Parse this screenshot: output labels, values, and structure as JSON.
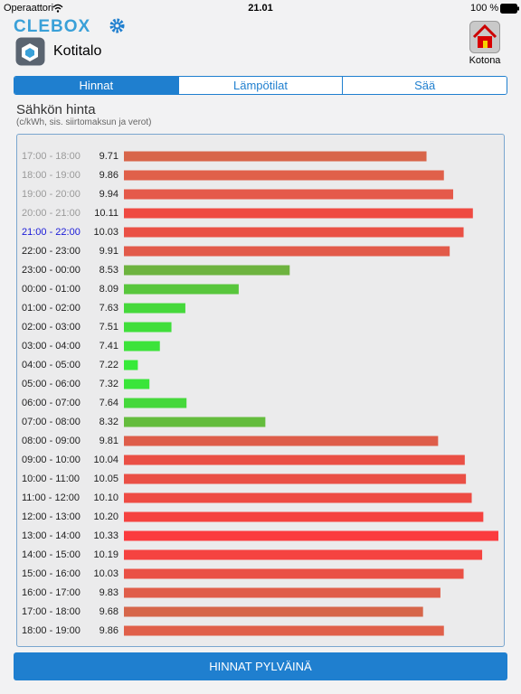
{
  "status_bar": {
    "carrier": "Operaattori",
    "time": "21.01",
    "battery": "100 %"
  },
  "header": {
    "logo": "CLEBOX",
    "location": "Kotitalo",
    "mode": "Kotona"
  },
  "tabs": [
    "Hinnat",
    "Lämpötilat",
    "Sää"
  ],
  "section": {
    "title": "Sähkön hinta",
    "subtitle": "(c/kWh, sis. siirtomaksun ja verot)"
  },
  "chart_data": {
    "type": "bar",
    "orientation": "horizontal",
    "categories": [
      "17:00 - 18:00",
      "18:00 - 19:00",
      "19:00 - 20:00",
      "20:00 - 21:00",
      "21:00 - 22:00",
      "22:00 - 23:00",
      "23:00 - 00:00",
      "00:00 - 01:00",
      "01:00 - 02:00",
      "02:00 - 03:00",
      "03:00 - 04:00",
      "04:00 - 05:00",
      "05:00 - 06:00",
      "06:00 - 07:00",
      "07:00 - 08:00",
      "08:00 - 09:00",
      "09:00 - 10:00",
      "10:00 - 11:00",
      "11:00 - 12:00",
      "12:00 - 13:00",
      "13:00 - 14:00",
      "14:00 - 15:00",
      "15:00 - 16:00",
      "16:00 - 17:00",
      "17:00 - 18:00",
      "18:00 - 19:00"
    ],
    "values": [
      9.71,
      9.86,
      9.94,
      10.11,
      10.03,
      9.91,
      8.53,
      8.09,
      7.63,
      7.51,
      7.41,
      7.22,
      7.32,
      7.64,
      8.32,
      9.81,
      10.04,
      10.05,
      10.1,
      10.2,
      10.33,
      10.19,
      10.03,
      9.83,
      9.68,
      9.86
    ],
    "value_labels": [
      "9.71",
      "9.86",
      "9.94",
      "10.11",
      "10.03",
      "9.91",
      "8.53",
      "8.09",
      "7.63",
      "7.51",
      "7.41",
      "7.22",
      "7.32",
      "7.64",
      "8.32",
      "9.81",
      "10.04",
      "10.05",
      "10.10",
      "10.20",
      "10.33",
      "10.19",
      "10.03",
      "9.83",
      "9.68",
      "9.86"
    ],
    "colors": [
      "#d8654a",
      "#e0604a",
      "#e5594a",
      "#ef4a42",
      "#ea5045",
      "#e25a4a",
      "#6db33f",
      "#58c63c",
      "#45d83b",
      "#40de3b",
      "#3ce33a",
      "#37ea3a",
      "#3ae53a",
      "#45d83b",
      "#64bc3d",
      "#de5d4a",
      "#ea4f45",
      "#ea4f45",
      "#ee4b43",
      "#f54340",
      "#fb3b3e",
      "#f54340",
      "#ea5045",
      "#e05e4a",
      "#d6664a",
      "#e0604a"
    ],
    "category_colors": [
      "#9a9a9a",
      "#9a9a9a",
      "#9a9a9a",
      "#9a9a9a",
      "#1a1ad8",
      "#222222",
      "#222222",
      "#222222",
      "#222222",
      "#222222",
      "#222222",
      "#222222",
      "#222222",
      "#222222",
      "#222222",
      "#222222",
      "#222222",
      "#222222",
      "#222222",
      "#222222",
      "#222222",
      "#222222",
      "#222222",
      "#222222",
      "#222222",
      "#222222"
    ],
    "xlim": [
      7.1,
      10.33
    ]
  },
  "button": "HINNAT PYLVÄINÄ"
}
